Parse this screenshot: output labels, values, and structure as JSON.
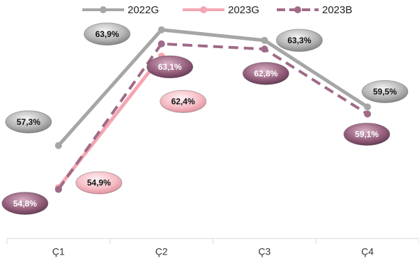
{
  "chart_data": {
    "type": "line",
    "categories": [
      "Ç1",
      "Ç2",
      "Ç3",
      "Ç4"
    ],
    "ylim": [
      52,
      65.5
    ],
    "series": [
      {
        "name": "2022G",
        "color": "#a6a6a6",
        "values": [
          57.3,
          63.9,
          63.3,
          59.5
        ],
        "value_labels": [
          "57,3%",
          "63,9%",
          "63,3%",
          "59,5%"
        ]
      },
      {
        "name": "2023G",
        "color": "#f4a6b2",
        "values": [
          54.9,
          62.4,
          null,
          null
        ],
        "value_labels": [
          "54,9%",
          "62,4%",
          null,
          null
        ]
      },
      {
        "name": "2023B",
        "color": "#a06a88",
        "dashed": true,
        "values": [
          54.8,
          63.1,
          62.8,
          59.1
        ],
        "value_labels": [
          "54,8%",
          "63,1%",
          "62,8%",
          "59,1%"
        ]
      }
    ]
  }
}
